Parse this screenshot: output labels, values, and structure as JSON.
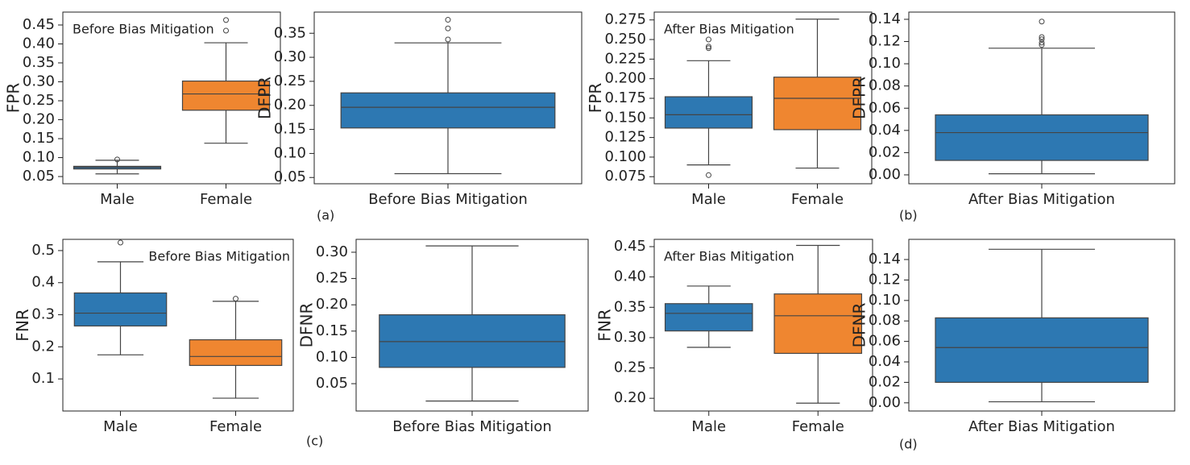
{
  "chart_data": [
    {
      "type": "box",
      "ylabel": "FPR",
      "annotation": "Before Bias Mitigation",
      "annotation_corner": "upper left",
      "categories": [
        "Male",
        "Female"
      ],
      "boxes": [
        {
          "whislo": 0.057,
          "q1": 0.07,
          "med": 0.074,
          "q3": 0.077,
          "whishi": 0.093,
          "fliers": [
            0.095
          ],
          "color": "#2d78b2"
        },
        {
          "whislo": 0.138,
          "q1": 0.225,
          "med": 0.268,
          "q3": 0.302,
          "whishi": 0.403,
          "fliers": [
            0.435,
            0.463
          ],
          "color": "#ef8630"
        }
      ],
      "ylim": [
        0.031,
        0.484
      ],
      "yticks": [
        0.05,
        {
          "value": 0.1,
          "label": "0.10"
        },
        0.15,
        {
          "value": 0.2,
          "label": "0.20"
        },
        0.25,
        {
          "value": 0.3,
          "label": "0.30"
        },
        0.35,
        {
          "value": 0.4,
          "label": "0.40"
        },
        0.45
      ]
    },
    {
      "type": "box",
      "ylabel": "DFPR",
      "categories": [
        "Before Bias Mitigation"
      ],
      "boxes": [
        {
          "whislo": 0.058,
          "q1": 0.153,
          "med": 0.196,
          "q3": 0.226,
          "whishi": 0.33,
          "fliers": [
            0.337,
            0.36,
            0.378
          ],
          "color": "#2d78b2"
        }
      ],
      "ylim": [
        0.037,
        0.394
      ],
      "yticks": [
        0.05,
        {
          "value": 0.1,
          "label": "0.10"
        },
        0.15,
        {
          "value": 0.2,
          "label": "0.20"
        },
        0.25,
        {
          "value": 0.3,
          "label": "0.30"
        },
        0.35
      ]
    },
    {
      "type": "box",
      "ylabel": "FPR",
      "annotation": "After Bias Mitigation",
      "annotation_corner": "upper left",
      "categories": [
        "Male",
        "Female"
      ],
      "boxes": [
        {
          "whislo": 0.09,
          "q1": 0.137,
          "med": 0.154,
          "q3": 0.177,
          "whishi": 0.223,
          "fliers": [
            0.077,
            0.239,
            0.241,
            0.25
          ],
          "color": "#2d78b2"
        },
        {
          "whislo": 0.086,
          "q1": 0.135,
          "med": 0.175,
          "q3": 0.202,
          "whishi": 0.276,
          "fliers": [],
          "color": "#ef8630"
        }
      ],
      "ylim": [
        0.066,
        0.285
      ],
      "yticks": [
        0.075,
        {
          "value": 0.1,
          "label": "0.100"
        },
        0.125,
        {
          "value": 0.15,
          "label": "0.150"
        },
        0.175,
        {
          "value": 0.2,
          "label": "0.200"
        },
        0.225,
        {
          "value": 0.25,
          "label": "0.250"
        },
        0.275
      ]
    },
    {
      "type": "box",
      "ylabel": "DFPR",
      "categories": [
        "After Bias Mitigation"
      ],
      "boxes": [
        {
          "whislo": 0.001,
          "q1": 0.013,
          "med": 0.038,
          "q3": 0.054,
          "whishi": 0.114,
          "fliers": [
            0.117,
            0.119,
            0.122,
            0.124,
            0.138
          ],
          "color": "#2d78b2"
        }
      ],
      "ylim": [
        -0.008,
        0.1465
      ],
      "yticks": [
        {
          "value": 0,
          "label": "0.00"
        },
        0.02,
        0.04,
        0.06,
        0.08,
        {
          "value": 0.1,
          "label": "0.10"
        },
        0.12,
        0.14
      ]
    },
    {
      "type": "box",
      "ylabel": "FNR",
      "annotation": "Before Bias Mitigation",
      "annotation_corner": "upper right",
      "categories": [
        "Male",
        "Female"
      ],
      "boxes": [
        {
          "whislo": 0.175,
          "q1": 0.265,
          "med": 0.305,
          "q3": 0.368,
          "whishi": 0.465,
          "fliers": [
            0.525
          ],
          "color": "#2d78b2"
        },
        {
          "whislo": 0.04,
          "q1": 0.142,
          "med": 0.17,
          "q3": 0.222,
          "whishi": 0.342,
          "fliers": [
            0.35
          ],
          "color": "#ef8630"
        }
      ],
      "ylim": [
        0.0,
        0.535
      ],
      "yticks": [
        0.1,
        0.2,
        0.3,
        0.4,
        0.5
      ]
    },
    {
      "type": "box",
      "ylabel": "DFNR",
      "categories": [
        "Before Bias Mitigation"
      ],
      "boxes": [
        {
          "whislo": 0.017,
          "q1": 0.081,
          "med": 0.13,
          "q3": 0.181,
          "whishi": 0.312,
          "fliers": [],
          "color": "#2d78b2"
        }
      ],
      "ylim": [
        -0.002,
        0.3245
      ],
      "yticks": [
        0.05,
        {
          "value": 0.1,
          "label": "0.10"
        },
        0.15,
        {
          "value": 0.2,
          "label": "0.20"
        },
        0.25,
        {
          "value": 0.3,
          "label": "0.30"
        }
      ]
    },
    {
      "type": "box",
      "ylabel": "FNR",
      "annotation": "After Bias Mitigation",
      "annotation_corner": "upper left",
      "categories": [
        "Male",
        "Female"
      ],
      "boxes": [
        {
          "whislo": 0.284,
          "q1": 0.311,
          "med": 0.34,
          "q3": 0.356,
          "whishi": 0.385,
          "fliers": [],
          "color": "#2d78b2"
        },
        {
          "whislo": 0.192,
          "q1": 0.274,
          "med": 0.336,
          "q3": 0.372,
          "whishi": 0.452,
          "fliers": [],
          "color": "#ef8630"
        }
      ],
      "ylim": [
        0.179,
        0.462
      ],
      "yticks": [
        {
          "value": 0.2,
          "label": "0.20"
        },
        0.25,
        {
          "value": 0.3,
          "label": "0.30"
        },
        0.35,
        {
          "value": 0.4,
          "label": "0.40"
        },
        0.45
      ]
    },
    {
      "type": "box",
      "ylabel": "DFNR",
      "categories": [
        "After Bias Mitigation"
      ],
      "boxes": [
        {
          "whislo": 0.001,
          "q1": 0.02,
          "med": 0.054,
          "q3": 0.083,
          "whishi": 0.15,
          "fliers": [],
          "color": "#2d78b2"
        }
      ],
      "ylim": [
        -0.008,
        0.1597
      ],
      "yticks": [
        {
          "value": 0,
          "label": "0.00"
        },
        0.02,
        0.04,
        0.06,
        0.08,
        {
          "value": 0.1,
          "label": "0.10"
        },
        0.12,
        0.14
      ]
    }
  ],
  "panel_labels": [
    "(a)",
    "(b)",
    "(c)",
    "(d)"
  ]
}
